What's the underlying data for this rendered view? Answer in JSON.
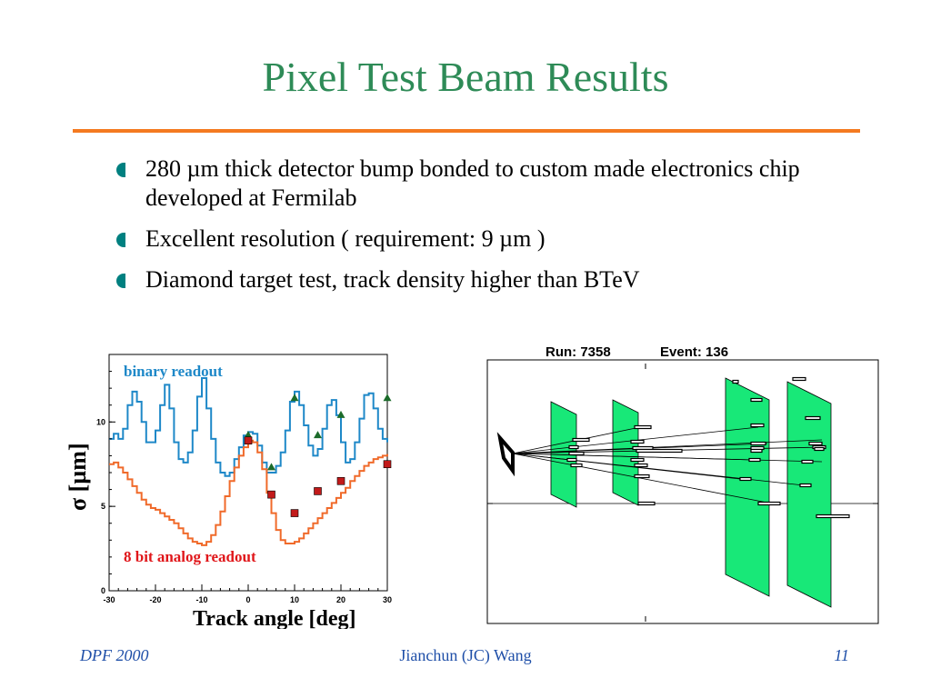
{
  "slide": {
    "title": "Pixel Test Beam Results",
    "accent_color": "#f47a20",
    "title_color": "#2e8b57",
    "bullets": [
      "280 µm thick detector bump bonded to custom made electronics chip developed at Fermilab",
      "Excellent resolution ( requirement: 9 µm )",
      "Diamond target test, track density higher than BTeV"
    ],
    "bullet_icon": "half-circle-bullet"
  },
  "chart_data": [
    {
      "type": "line",
      "xlabel": "Track angle [deg]",
      "ylabel": "σ [µm]",
      "xlim": [
        -30,
        30
      ],
      "ylim": [
        0,
        14
      ],
      "xticks": [
        -30,
        -20,
        -10,
        0,
        10,
        20,
        30
      ],
      "yticks": [
        0,
        5,
        10
      ],
      "grid": false,
      "series": [
        {
          "name": "binary readout",
          "color": "#1e88c8",
          "x": [
            -30,
            -29,
            -28,
            -27,
            -26,
            -25,
            -24,
            -23,
            -22,
            -21,
            -20,
            -19,
            -18,
            -17,
            -16,
            -15,
            -14,
            -13,
            -12,
            -11,
            -10,
            -9,
            -8,
            -7,
            -6,
            -5,
            -4,
            -3,
            -2,
            -1,
            0,
            1,
            2,
            3,
            4,
            5,
            6,
            7,
            8,
            9,
            10,
            11,
            12,
            13,
            14,
            15,
            16,
            17,
            18,
            19,
            20,
            21,
            22,
            23,
            24,
            25,
            26,
            27,
            28,
            29,
            30
          ],
          "values": [
            9.0,
            9.3,
            9.0,
            9.6,
            11.0,
            11.8,
            11.2,
            10.0,
            8.8,
            8.8,
            9.5,
            11.0,
            12.2,
            10.8,
            8.8,
            7.8,
            7.6,
            8.2,
            9.5,
            11.5,
            12.6,
            10.8,
            9.0,
            7.6,
            7.0,
            6.8,
            7.0,
            7.8,
            8.5,
            9.2,
            9.4,
            9.3,
            8.6,
            7.6,
            7.0,
            7.0,
            7.4,
            8.2,
            9.5,
            11.2,
            11.8,
            11.0,
            9.8,
            8.6,
            8.0,
            8.4,
            9.6,
            11.0,
            11.3,
            10.4,
            8.8,
            7.6,
            7.8,
            8.8,
            10.2,
            11.6,
            11.7,
            10.8,
            9.6,
            9.0,
            8.8
          ]
        },
        {
          "name": "8 bit analog readout",
          "color": "#f06a2a",
          "x": [
            -30,
            -29,
            -28,
            -27,
            -26,
            -25,
            -24,
            -23,
            -22,
            -21,
            -20,
            -19,
            -18,
            -17,
            -16,
            -15,
            -14,
            -13,
            -12,
            -11,
            -10,
            -9,
            -8,
            -7,
            -6,
            -5,
            -4,
            -3,
            -2,
            -1,
            0,
            1,
            2,
            3,
            4,
            5,
            6,
            7,
            8,
            9,
            10,
            11,
            12,
            13,
            14,
            15,
            16,
            17,
            18,
            19,
            20,
            21,
            22,
            23,
            24,
            25,
            26,
            27,
            28,
            29,
            30
          ],
          "values": [
            7.5,
            7.6,
            7.3,
            7.0,
            6.6,
            6.2,
            5.8,
            5.4,
            5.1,
            4.9,
            4.8,
            4.6,
            4.4,
            4.2,
            4.0,
            3.7,
            3.4,
            3.1,
            2.9,
            2.8,
            2.7,
            2.9,
            3.3,
            3.9,
            4.7,
            5.6,
            6.5,
            7.3,
            8.0,
            8.5,
            8.9,
            8.8,
            8.2,
            7.2,
            5.8,
            4.6,
            3.6,
            3.0,
            2.8,
            2.8,
            2.9,
            3.1,
            3.4,
            3.7,
            4.0,
            4.3,
            4.6,
            4.9,
            5.2,
            5.5,
            5.8,
            6.1,
            6.5,
            6.8,
            7.1,
            7.4,
            7.6,
            7.8,
            7.9,
            8.0,
            8.1
          ]
        }
      ],
      "markers": [
        {
          "series": "binary readout",
          "shape": "triangle",
          "color": "#1b6b2a",
          "x": [
            0,
            5,
            10,
            15,
            20,
            30
          ],
          "values": [
            9.2,
            7.3,
            11.4,
            9.2,
            10.4,
            11.4
          ]
        },
        {
          "series": "8 bit analog readout",
          "shape": "square",
          "color": "#c21a1a",
          "x": [
            0,
            5,
            10,
            15,
            20,
            30
          ],
          "values": [
            8.9,
            5.7,
            4.6,
            5.9,
            6.5,
            7.5
          ]
        }
      ],
      "legend": [
        "binary readout",
        "8 bit analog readout"
      ]
    },
    {
      "type": "diagram",
      "header": {
        "run_label": "Run: 7358",
        "event_label": "Event: 136"
      },
      "plane_color": "#18e878"
    }
  ],
  "footer": {
    "left": "DPF 2000",
    "center": "Jianchun (JC) Wang",
    "right": "11"
  }
}
